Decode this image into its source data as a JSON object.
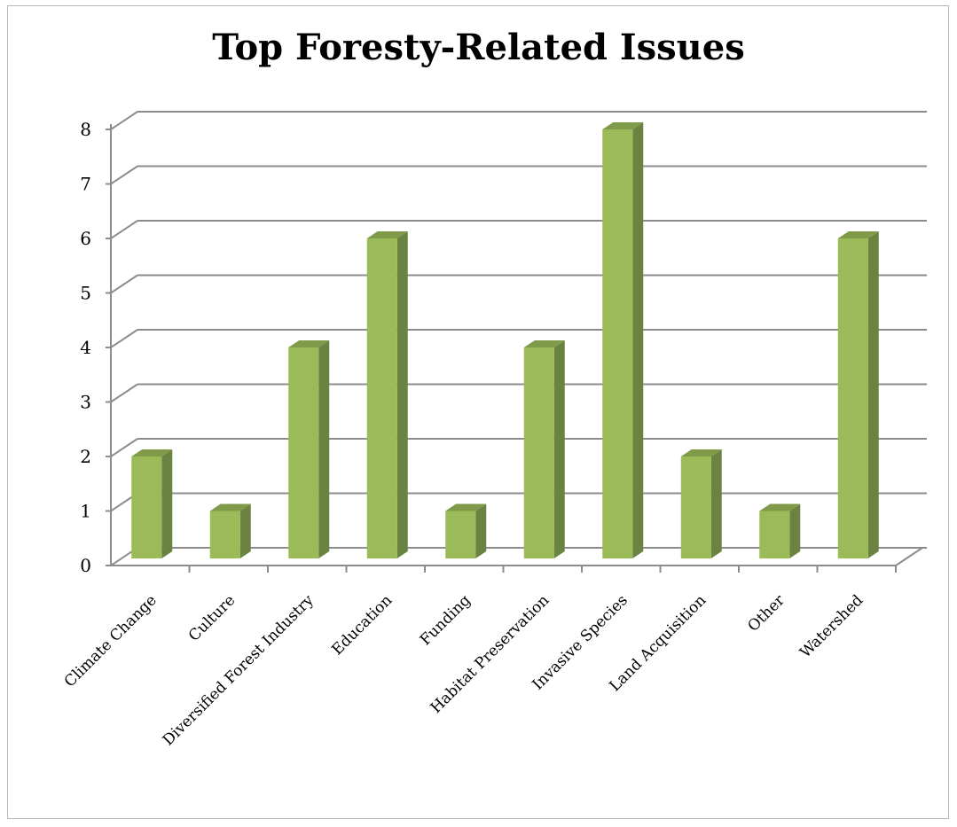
{
  "chart_data": {
    "type": "bar",
    "title": "Top Foresty-Related Issues",
    "categories": [
      "Climate Change",
      "Culture",
      "Diversified Forest Industry",
      "Education",
      "Funding",
      "Habitat Preservation",
      "Invasive Species",
      "Land Acquisition",
      "Other",
      "Watershed"
    ],
    "values": [
      2,
      1,
      4,
      6,
      1,
      4,
      8,
      2,
      1,
      6
    ],
    "ylim": [
      0,
      8
    ],
    "yticks": [
      0,
      1,
      2,
      3,
      4,
      5,
      6,
      7,
      8
    ],
    "grid": true,
    "legend": "none",
    "colors": {
      "bar_front": "#9bbb59",
      "bar_side": "#6b8340",
      "bar_top": "#7f9a48",
      "grid": "#8c8c8c"
    }
  }
}
